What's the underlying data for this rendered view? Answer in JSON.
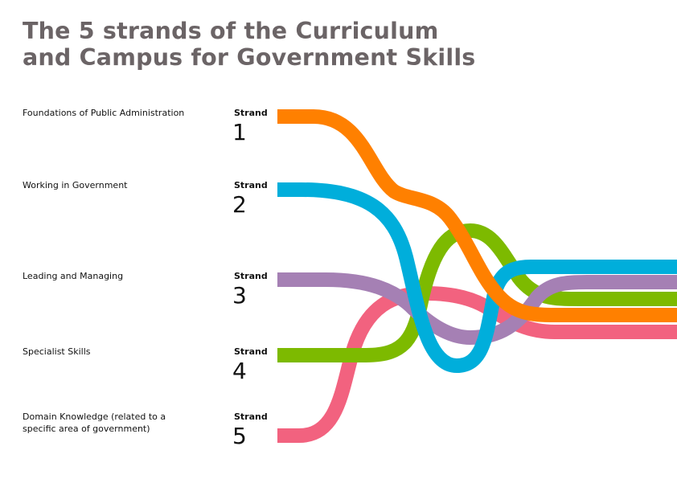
{
  "title": {
    "line1": "The 5 strands of the Curriculum",
    "line2": "and Campus for Government Skills"
  },
  "strands": [
    {
      "label_lines": [
        "Foundations of Public Administration"
      ],
      "strand_word": "Strand",
      "number": "1",
      "color": "#ff8000"
    },
    {
      "label_lines": [
        "Working in Government"
      ],
      "strand_word": "Strand",
      "number": "2",
      "color": "#00aedb"
    },
    {
      "label_lines": [
        "Leading and Managing"
      ],
      "strand_word": "Strand",
      "number": "3",
      "color": "#a580b4"
    },
    {
      "label_lines": [
        "Specialist Skills"
      ],
      "strand_word": "Strand",
      "number": "4",
      "color": "#7dba00"
    },
    {
      "label_lines": [
        "Domain Knowledge (related to a",
        "specific area of government)"
      ],
      "strand_word": "Strand",
      "number": "5",
      "color": "#f2627f"
    }
  ]
}
